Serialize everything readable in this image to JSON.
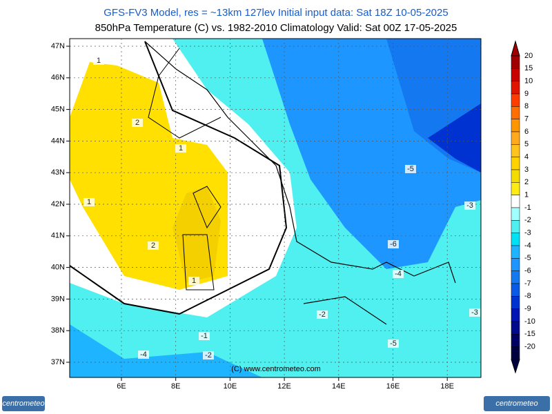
{
  "header": {
    "title_line1": "GFS-FV3 Model, res = ~13km 127lev   Initial input data: Sat 18Z 10-05-2025",
    "title_line2": "850hPa Temperature (C) vs. 1982-2010 Climatology  Valid: Sat 00Z 17-05-2025"
  },
  "map": {
    "lat_labels": [
      "47N",
      "46N",
      "45N",
      "44N",
      "43N",
      "42N",
      "41N",
      "40N",
      "39N",
      "38N",
      "37N"
    ],
    "lon_labels": [
      "6E",
      "8E",
      "10E",
      "12E",
      "14E",
      "16E",
      "18E"
    ],
    "contour_labels": [
      "1",
      "2",
      "1",
      "1",
      "2",
      "1",
      "-1",
      "-4",
      "-2",
      "-2",
      "-5",
      "-3",
      "-6",
      "-4",
      "-3",
      "-5"
    ],
    "copyright": "(C) www.centrometeo.com"
  },
  "colorbar": {
    "levels": [
      {
        "label": "20",
        "color": "#a00000"
      },
      {
        "label": "15",
        "color": "#c80000"
      },
      {
        "label": "10",
        "color": "#e11400"
      },
      {
        "label": "9",
        "color": "#ff3c00"
      },
      {
        "label": "8",
        "color": "#ff6e00"
      },
      {
        "label": "7",
        "color": "#ff9600"
      },
      {
        "label": "6",
        "color": "#ffaa1e"
      },
      {
        "label": "5",
        "color": "#ffc31e"
      },
      {
        "label": "4",
        "color": "#ffd200"
      },
      {
        "label": "3",
        "color": "#f5dc00"
      },
      {
        "label": "2",
        "color": "#ffeb14"
      },
      {
        "label": "1",
        "color": "#ffffff"
      },
      {
        "label": "-1",
        "color": "#a0ffff"
      },
      {
        "label": "-2",
        "color": "#50f0f0"
      },
      {
        "label": "-3",
        "color": "#00e1f5"
      },
      {
        "label": "-4",
        "color": "#1eb4ff"
      },
      {
        "label": "-5",
        "color": "#1e96ff"
      },
      {
        "label": "-6",
        "color": "#1478f0"
      },
      {
        "label": "-7",
        "color": "#0a5ae6"
      },
      {
        "label": "-8",
        "color": "#0032d2"
      },
      {
        "label": "-9",
        "color": "#0014b4"
      },
      {
        "label": "-10",
        "color": "#000a8c"
      },
      {
        "label": "-15",
        "color": "#000064"
      },
      {
        "label": "-20",
        "color": "#000040"
      }
    ]
  },
  "logos": {
    "left": "centrometeo",
    "right": "centrometeo"
  }
}
